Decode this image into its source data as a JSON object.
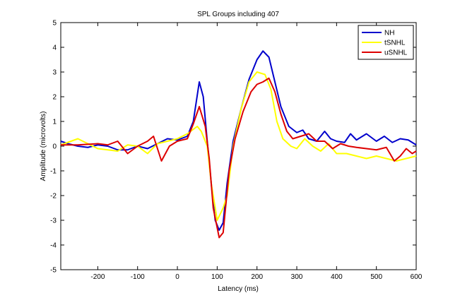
{
  "chart_data": {
    "type": "line",
    "title": "SPL Groups including 407",
    "xlabel": "Latency (ms)",
    "ylabel": "Amplitude (microvolts)",
    "xlim": [
      -293,
      600
    ],
    "ylim": [
      -5,
      5
    ],
    "xticks": [
      -200,
      -100,
      0,
      100,
      200,
      300,
      400,
      500,
      600
    ],
    "yticks": [
      -5,
      -4,
      -3,
      -2,
      -1,
      0,
      1,
      2,
      3,
      4,
      5
    ],
    "legend": "upper right",
    "series": [
      {
        "name": "NH",
        "color": "#0000cc",
        "x": [
          -293,
          -275,
          -250,
          -225,
          -200,
          -175,
          -150,
          -125,
          -100,
          -75,
          -50,
          -25,
          0,
          25,
          40,
          55,
          65,
          75,
          85,
          95,
          105,
          115,
          125,
          140,
          160,
          180,
          200,
          215,
          230,
          245,
          260,
          280,
          300,
          315,
          330,
          350,
          370,
          385,
          400,
          420,
          435,
          450,
          475,
          500,
          520,
          540,
          560,
          580,
          600
        ],
        "values": [
          0.2,
          0.1,
          0.0,
          -0.05,
          0.05,
          0,
          -0.15,
          -0.15,
          0,
          -0.1,
          0.1,
          0.3,
          0.25,
          0.4,
          1.0,
          2.6,
          2.0,
          0.2,
          -1.5,
          -3.0,
          -3.4,
          -3.1,
          -1.5,
          0.2,
          1.5,
          2.7,
          3.5,
          3.85,
          3.6,
          2.6,
          1.6,
          0.8,
          0.55,
          0.65,
          0.3,
          0.2,
          0.6,
          0.3,
          0.2,
          0.15,
          0.5,
          0.25,
          0.5,
          0.2,
          0.4,
          0.15,
          0.3,
          0.25,
          0.05
        ]
      },
      {
        "name": "tSNHL",
        "color": "#ffff00",
        "x": [
          -293,
          -250,
          -225,
          -200,
          -175,
          -150,
          -125,
          -100,
          -75,
          -50,
          -25,
          0,
          25,
          50,
          60,
          75,
          85,
          100,
          115,
          125,
          140,
          160,
          180,
          200,
          220,
          235,
          250,
          265,
          285,
          300,
          320,
          340,
          360,
          380,
          400,
          425,
          450,
          475,
          500,
          525,
          550,
          575,
          600
        ],
        "values": [
          0.05,
          0.3,
          0.1,
          -0.1,
          -0.15,
          -0.2,
          0.05,
          0,
          -0.3,
          0.1,
          0.2,
          0.3,
          0.5,
          0.8,
          0.6,
          0.0,
          -1.5,
          -3.0,
          -2.5,
          -2.0,
          0.0,
          1.5,
          2.6,
          3.0,
          2.9,
          2.3,
          1.0,
          0.3,
          0.0,
          -0.1,
          0.3,
          0.0,
          -0.2,
          0.1,
          -0.3,
          -0.3,
          -0.4,
          -0.5,
          -0.4,
          -0.5,
          -0.6,
          -0.5,
          -0.4
        ]
      },
      {
        "name": "uSNHL",
        "color": "#dd0000",
        "x": [
          -293,
          -250,
          -200,
          -175,
          -150,
          -125,
          -100,
          -75,
          -60,
          -40,
          -20,
          0,
          25,
          40,
          55,
          70,
          80,
          90,
          105,
          115,
          130,
          145,
          165,
          185,
          200,
          215,
          230,
          245,
          260,
          275,
          290,
          310,
          330,
          350,
          370,
          390,
          410,
          430,
          450,
          475,
          500,
          525,
          545,
          560,
          575,
          590,
          600
        ],
        "values": [
          0.05,
          0.05,
          0.1,
          0.05,
          0.2,
          -0.3,
          0,
          0.2,
          0.4,
          -0.6,
          0,
          0.2,
          0.3,
          0.9,
          1.6,
          0.8,
          -0.5,
          -2.5,
          -3.7,
          -3.5,
          -1.0,
          0.3,
          1.4,
          2.2,
          2.5,
          2.6,
          2.75,
          2.2,
          1.3,
          0.6,
          0.3,
          0.4,
          0.5,
          0.2,
          0.2,
          -0.1,
          0.1,
          0.0,
          -0.05,
          -0.1,
          -0.15,
          -0.05,
          -0.6,
          -0.4,
          -0.1,
          -0.3,
          -0.2
        ]
      }
    ]
  }
}
